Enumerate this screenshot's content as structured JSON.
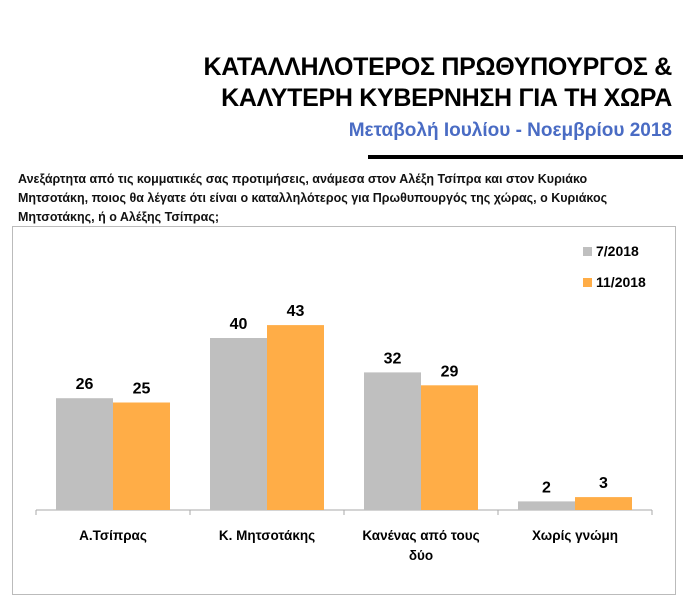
{
  "header": {
    "title_line1": "ΚΑΤΑΛΛΗΛΟΤΕΡΟΣ ΠΡΩΘΥΠΟΥΡΓΟΣ &",
    "title_line2": "ΚΑΛΥΤΕΡΗ ΚΥΒΕΡΝΗΣΗ ΓΙΑ ΤΗ ΧΩΡΑ",
    "subtitle": "Μεταβολή Ιουλίου - Νοεμβρίου 2018"
  },
  "question": "Ανεξάρτητα από τις κομματικές σας προτιμήσεις, ανάμεσα στον Αλέξη Τσίπρα και στον Κυριάκο Μητσοτάκη, ποιος θα λέγατε ότι είναι ο καταλληλότερος για Πρωθυπουργός της χώρας, ο Κυριάκος Μητσοτάκης, ή ο Αλέξης Τσίπρας;",
  "chart_data": {
    "type": "bar",
    "categories": [
      [
        "Α.Τσίπρας"
      ],
      [
        "Κ. Μητσοτάκης"
      ],
      [
        "Κανένας από τους",
        "δύο"
      ],
      [
        "Χωρίς γνώμη"
      ]
    ],
    "series": [
      {
        "name": "7/2018",
        "color": "#bfbfbf",
        "values": [
          26,
          40,
          32,
          2
        ]
      },
      {
        "name": "11/2018",
        "color": "#ffad47",
        "values": [
          25,
          43,
          29,
          3
        ]
      }
    ],
    "ylim": [
      0,
      43
    ],
    "grid": false,
    "legend": "top-right",
    "data_labels": true
  }
}
